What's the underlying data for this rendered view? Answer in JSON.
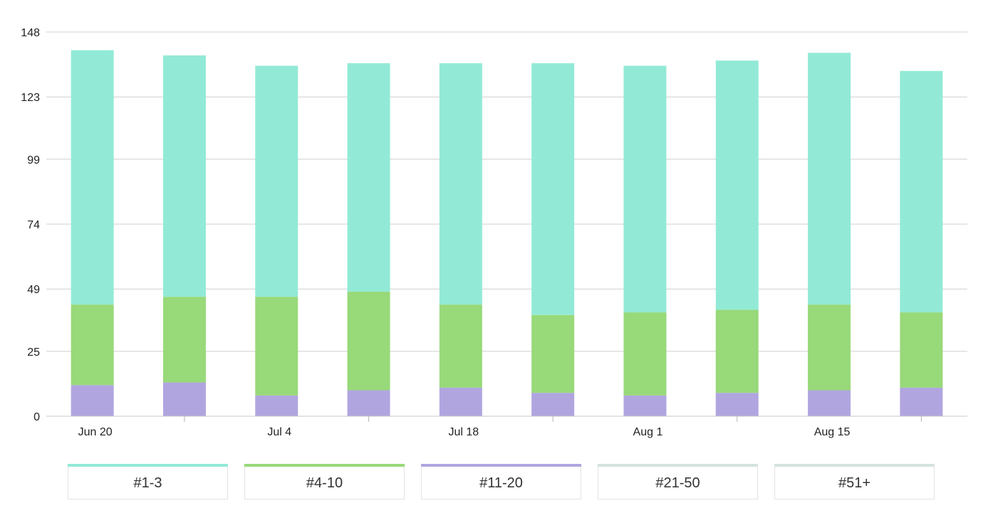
{
  "chart_data": {
    "type": "bar",
    "stacked": true,
    "categories": [
      "Jun 20",
      "",
      "Jul 4",
      "",
      "Jul 18",
      "",
      "Aug 1",
      "",
      "Aug 15",
      ""
    ],
    "series": [
      {
        "name": "#11-20",
        "color": "#b1a5e0",
        "values": [
          12,
          13,
          8,
          10,
          11,
          9,
          8,
          9,
          10,
          11
        ]
      },
      {
        "name": "#4-10",
        "color": "#98d97a",
        "values": [
          31,
          33,
          38,
          38,
          32,
          30,
          32,
          32,
          33,
          29
        ]
      },
      {
        "name": "#1-3",
        "color": "#92ead6",
        "values": [
          98,
          93,
          89,
          88,
          93,
          97,
          95,
          96,
          97,
          93
        ]
      },
      {
        "name": "#21-50",
        "color": "#d5e3dd",
        "values": [
          0,
          0,
          0,
          0,
          0,
          0,
          0,
          0,
          0,
          0
        ]
      },
      {
        "name": "#51+",
        "color": "#d5e3dd",
        "values": [
          0,
          0,
          0,
          0,
          0,
          0,
          0,
          0,
          0,
          0
        ]
      }
    ],
    "yticks": [
      0,
      25,
      49,
      74,
      99,
      123,
      148
    ],
    "ylim": [
      0,
      148
    ],
    "grid": true,
    "legend_position": "bottom"
  },
  "legend": [
    {
      "label": "#1-3",
      "color": "#92ead6"
    },
    {
      "label": "#4-10",
      "color": "#98d97a"
    },
    {
      "label": "#11-20",
      "color": "#b1a5e0"
    },
    {
      "label": "#21-50",
      "color": "#d5e3dd"
    },
    {
      "label": "#51+",
      "color": "#d5e3dd"
    }
  ]
}
